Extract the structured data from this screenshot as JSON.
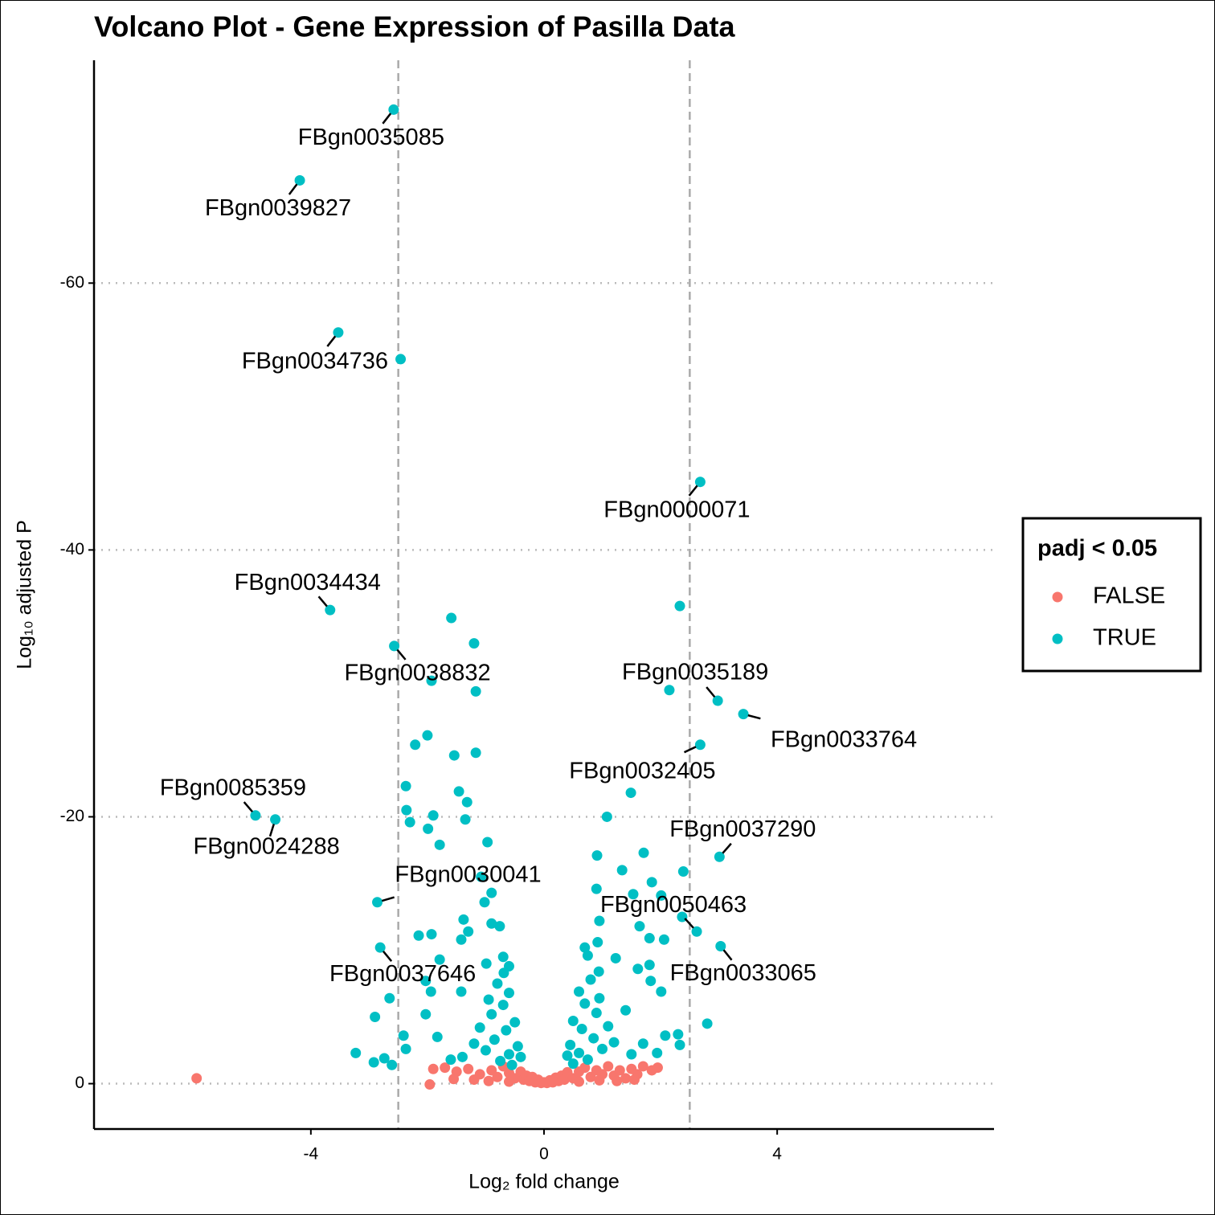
{
  "chart_data": {
    "type": "scatter",
    "title": "Volcano Plot - Gene Expression of Pasilla Data",
    "x_label": "Log₂ fold change",
    "y_label": "Log₁₀ adjusted P",
    "legend_title": "padj < 0.05",
    "legend_position": "right",
    "xlim": [
      -7.72,
      7.72
    ],
    "ylim": [
      3.4,
      -76.7
    ],
    "xticks": [
      -4,
      0,
      4
    ],
    "yticks": [
      -60,
      -40,
      -20,
      0
    ],
    "grid": "horizontal-dotted",
    "vlines": [
      -2.5,
      2.5
    ],
    "series": [
      {
        "name": "FALSE",
        "color": "#F8766D",
        "x": [
          -5.96,
          -1.96,
          -1.7,
          -1.5,
          -1.3,
          -1.1,
          -0.9,
          -0.8,
          -0.7,
          -0.6,
          -0.5,
          -0.4,
          -0.35,
          -0.3,
          -0.25,
          -0.2,
          -0.15,
          -0.1,
          -0.05,
          0,
          0.05,
          0.1,
          0.15,
          0.2,
          0.25,
          0.3,
          0.35,
          0.4,
          0.5,
          0.6,
          0.7,
          0.8,
          0.9,
          1.0,
          1.1,
          1.2,
          1.3,
          1.4,
          1.5,
          1.6,
          1.7,
          1.85,
          1.95,
          -1.9,
          -1.2,
          -0.95,
          -0.6,
          0.6,
          0.95,
          1.25,
          -1.55,
          1.55
        ],
        "values": [
          -0.4,
          0.06,
          -1.2,
          -0.9,
          -1.1,
          -0.7,
          -1.0,
          -0.5,
          -1.3,
          -0.8,
          -0.4,
          -0.9,
          -0.3,
          -0.6,
          -0.2,
          -0.5,
          -0.1,
          -0.3,
          -0.05,
          -0.1,
          -0.05,
          -0.25,
          -0.1,
          -0.45,
          -0.2,
          -0.6,
          -0.3,
          -0.85,
          -0.4,
          -0.9,
          -1.2,
          -0.5,
          -1.0,
          -0.7,
          -1.3,
          -0.6,
          -1.0,
          -0.4,
          -1.1,
          -0.7,
          -1.3,
          -1.0,
          -1.2,
          -1.1,
          -0.3,
          -0.2,
          -0.15,
          -0.15,
          -0.25,
          -0.2,
          -0.35,
          -0.3
        ]
      },
      {
        "name": "TRUE",
        "color": "#00BFC4",
        "x": [
          -2.58,
          -4.19,
          -3.53,
          2.68,
          -3.67,
          -2.57,
          2.98,
          3.42,
          2.68,
          -4.95,
          -4.61,
          3.01,
          -2.86,
          2.62,
          3.03,
          -2.81,
          -2.46,
          -1.59,
          -1.2,
          -1.93,
          -1.17,
          2.33,
          2.15,
          -2.0,
          -2.21,
          -1.54,
          -1.17,
          -2.37,
          -1.46,
          -1.32,
          1.49,
          -2.36,
          -1.9,
          1.08,
          -2.3,
          -1.99,
          -1.35,
          -1.79,
          -0.97,
          0.91,
          1.71,
          1.34,
          2.39,
          1.85,
          -1.08,
          -0.9,
          -1.02,
          0.9,
          1.53,
          2.01,
          -1.38,
          -1.3,
          -0.9,
          -0.76,
          0.95,
          1.64,
          2.37,
          -2.15,
          -1.93,
          -1.42,
          1.81,
          2.06,
          0.92,
          0.7,
          -1.79,
          -0.99,
          1.23,
          1.81,
          1.61,
          0.94,
          -2.03,
          -0.69,
          1.83,
          -2.65,
          -1.94,
          -1.42,
          2.01,
          -2.9,
          -2.03,
          2.8,
          -2.41,
          -1.83,
          2.08,
          2.3,
          -3.23,
          -2.74,
          -2.92,
          -2.61,
          -2.37,
          2.33,
          1.94,
          -0.8,
          -0.6,
          -0.7,
          -0.9,
          -0.5,
          -0.65,
          -0.85,
          -0.45,
          -0.6,
          -0.75,
          -1.0,
          -1.1,
          -0.55,
          -0.4,
          -0.95,
          -1.2,
          -0.7,
          -0.6,
          -1.4,
          -1.6,
          0.8,
          0.6,
          0.7,
          0.9,
          0.5,
          0.65,
          0.85,
          0.45,
          0.6,
          0.75,
          1.0,
          1.1,
          0.5,
          0.4,
          0.95,
          1.2,
          0.75,
          1.4,
          1.5,
          1.7
        ],
        "values": [
          -73.0,
          -67.7,
          -56.3,
          -45.1,
          -35.5,
          -32.8,
          -28.7,
          -27.7,
          -25.4,
          -20.1,
          -19.8,
          -17.0,
          -13.6,
          -11.4,
          -10.3,
          -10.2,
          -54.3,
          -34.9,
          -33.0,
          -30.2,
          -29.4,
          -35.8,
          -29.5,
          -26.1,
          -25.4,
          -24.6,
          -24.8,
          -22.3,
          -21.9,
          -21.1,
          -21.8,
          -20.5,
          -20.1,
          -20.0,
          -19.6,
          -19.1,
          -19.8,
          -17.9,
          -18.1,
          -17.1,
          -17.3,
          -16.0,
          -15.9,
          -15.1,
          -15.5,
          -14.3,
          -13.6,
          -14.6,
          -14.2,
          -14.1,
          -12.3,
          -11.4,
          -12.0,
          -11.8,
          -12.2,
          -11.8,
          -12.5,
          -11.1,
          -11.2,
          -10.8,
          -10.9,
          -10.8,
          -10.6,
          -10.2,
          -9.3,
          -9.0,
          -9.4,
          -8.9,
          -8.6,
          -8.4,
          -7.7,
          -8.3,
          -7.7,
          -6.4,
          -6.9,
          -6.9,
          -6.9,
          -5.0,
          -5.2,
          -4.5,
          -3.6,
          -3.5,
          -3.6,
          -3.7,
          -2.3,
          -1.9,
          -1.6,
          -1.4,
          -2.6,
          -2.9,
          -2.3,
          -7.5,
          -6.8,
          -5.9,
          -5.2,
          -4.6,
          -4.0,
          -3.3,
          -2.8,
          -2.2,
          -1.7,
          -2.5,
          -4.2,
          -1.4,
          -2.0,
          -6.3,
          -3.0,
          -9.5,
          -8.8,
          -2.0,
          -1.8,
          -7.8,
          -6.9,
          -6.0,
          -5.3,
          -4.7,
          -4.1,
          -3.4,
          -2.9,
          -2.3,
          -1.8,
          -2.6,
          -4.3,
          -1.5,
          -2.1,
          -6.4,
          -3.1,
          -9.6,
          -5.5,
          -2.2,
          -3.0
        ],
        "point_labels": [
          "FBgn0035085",
          "FBgn0039827",
          "FBgn0034736",
          "FBgn0000071",
          "FBgn0034434",
          "FBgn0038832",
          "FBgn0035189",
          "FBgn0033764",
          "FBgn0032405",
          "FBgn0085359",
          "FBgn0024288",
          "FBgn0037290",
          "FBgn0030041",
          "FBgn0050463",
          "FBgn0033065",
          "FBgn0037646",
          null,
          null,
          null,
          null,
          null,
          null,
          null,
          null,
          null,
          null,
          null,
          null,
          null,
          null,
          null,
          null,
          null,
          null,
          null,
          null,
          null,
          null,
          null,
          null,
          null,
          null,
          null,
          null,
          null,
          null,
          null,
          null,
          null,
          null,
          null,
          null,
          null,
          null,
          null,
          null,
          null,
          null,
          null,
          null,
          null,
          null,
          null,
          null,
          null,
          null,
          null,
          null,
          null,
          null,
          null,
          null,
          null,
          null,
          null,
          null,
          null,
          null,
          null,
          null,
          null,
          null,
          null,
          null,
          null,
          null,
          null,
          null,
          null,
          null,
          null,
          null,
          null,
          null,
          null,
          null,
          null,
          null,
          null,
          null,
          null,
          null,
          null,
          null,
          null,
          null,
          null,
          null,
          null,
          null,
          null,
          null,
          null,
          null,
          null,
          null,
          null,
          null,
          null,
          null,
          null,
          null,
          null,
          null,
          null,
          null,
          null,
          null,
          null,
          null,
          null
        ]
      }
    ]
  }
}
